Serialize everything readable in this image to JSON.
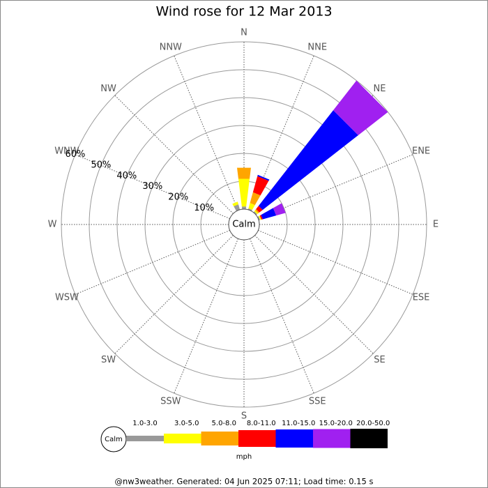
{
  "chart_data": {
    "type": "windrose",
    "title": "Wind rose for 12 Mar 2013",
    "footer": "@nw3weather. Generated: 04 Jun 2025 07:11; Load time: 0.15 s",
    "unit": "mph",
    "calm_label": "Calm",
    "categories": [
      "N",
      "NNE",
      "NE",
      "ENE",
      "E",
      "ESE",
      "SE",
      "SSE",
      "S",
      "SSW",
      "SW",
      "WSW",
      "W",
      "WNW",
      "NW",
      "NNW"
    ],
    "rlim": [
      0,
      60
    ],
    "rticks": [
      {
        "value": 10,
        "label": "10%"
      },
      {
        "value": 20,
        "label": "20%"
      },
      {
        "value": 30,
        "label": "30%"
      },
      {
        "value": 40,
        "label": "40%"
      },
      {
        "value": 50,
        "label": "50%"
      },
      {
        "value": 60,
        "label": "60%"
      }
    ],
    "series": [
      {
        "name": "1.0-3.0",
        "color": "#999999",
        "values": [
          1,
          0.5,
          0.5,
          0.5,
          0,
          0,
          0,
          0,
          0,
          0,
          0,
          0,
          0,
          0,
          0,
          2
        ]
      },
      {
        "name": "3.0-5.0",
        "color": "#ffff00",
        "values": [
          10,
          2,
          0.5,
          0.5,
          0,
          0,
          0,
          0,
          0,
          0,
          0,
          0,
          0,
          0,
          0,
          1
        ]
      },
      {
        "name": "5.0-8.0",
        "color": "#ffa500",
        "values": [
          4,
          4,
          0.5,
          0,
          0,
          0,
          0,
          0,
          0,
          0,
          0,
          0,
          0,
          0,
          0,
          0
        ]
      },
      {
        "name": "8.0-11.0",
        "color": "#ff0000",
        "values": [
          0,
          6,
          1.5,
          0.5,
          0,
          0,
          0,
          0,
          0,
          0,
          0,
          0,
          0,
          0,
          0,
          0
        ]
      },
      {
        "name": "11.0-15.0",
        "color": "#0000ff",
        "values": [
          0,
          0.5,
          43.5,
          5,
          0,
          0,
          0,
          0,
          0,
          0,
          0,
          0,
          0,
          0,
          0,
          0
        ]
      },
      {
        "name": "15.0-20.0",
        "color": "#a020f0",
        "values": [
          0,
          0,
          13.5,
          3.5,
          0,
          0,
          0,
          0,
          0,
          0,
          0,
          0,
          0,
          0,
          0,
          0
        ]
      },
      {
        "name": "20.0-50.0",
        "color": "#000000",
        "values": [
          0,
          0,
          0,
          0,
          0,
          0,
          0,
          0,
          0,
          0,
          0,
          0,
          0,
          0,
          0,
          0
        ]
      }
    ]
  }
}
